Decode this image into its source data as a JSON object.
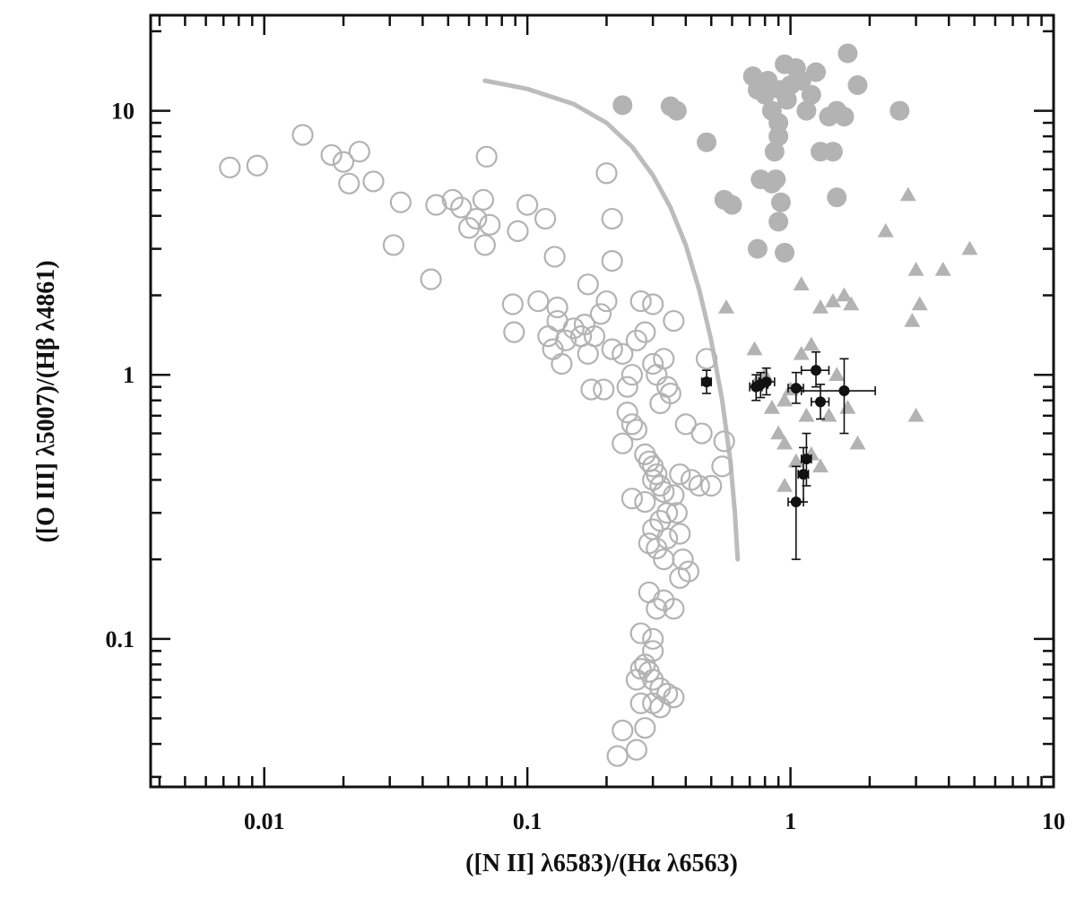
{
  "chart_data": {
    "type": "scatter",
    "title": "",
    "xlabel": "([N II] λ6583)/(Hα λ6563)",
    "ylabel": "([O III] λ5007)/(Hβ λ4861)",
    "xscale": "log",
    "yscale": "log",
    "xlim": [
      0.0037,
      10
    ],
    "ylim": [
      0.0275,
      23
    ],
    "x_tick_labels": [
      {
        "value": 0.01,
        "label": "0.01"
      },
      {
        "value": 0.1,
        "label": "0.1"
      },
      {
        "value": 1,
        "label": "1"
      },
      {
        "value": 10,
        "label": "10"
      }
    ],
    "y_tick_labels": [
      {
        "value": 0.1,
        "label": "0.1"
      },
      {
        "value": 1,
        "label": "1"
      },
      {
        "value": 10,
        "label": "10"
      }
    ],
    "grid": false,
    "legend": "none",
    "colors": {
      "gray": "#b3b3b3",
      "black": "#111111"
    },
    "curve": {
      "color": "#bcbcbc",
      "points": [
        [
          0.069,
          13.0
        ],
        [
          0.1,
          12.1
        ],
        [
          0.15,
          10.6
        ],
        [
          0.2,
          9.0
        ],
        [
          0.25,
          7.3
        ],
        [
          0.3,
          5.7
        ],
        [
          0.35,
          4.3
        ],
        [
          0.4,
          3.1
        ],
        [
          0.45,
          2.1
        ],
        [
          0.5,
          1.35
        ],
        [
          0.55,
          0.8
        ],
        [
          0.59,
          0.48
        ],
        [
          0.615,
          0.3
        ],
        [
          0.63,
          0.2
        ]
      ]
    },
    "series": [
      {
        "marker": "open-circle",
        "color": "#b3b3b3",
        "points": [
          [
            0.0074,
            6.1
          ],
          [
            0.0094,
            6.2
          ],
          [
            0.014,
            8.1
          ],
          [
            0.018,
            6.8
          ],
          [
            0.02,
            6.4
          ],
          [
            0.021,
            5.3
          ],
          [
            0.023,
            7.0
          ],
          [
            0.026,
            5.4
          ],
          [
            0.031,
            3.1
          ],
          [
            0.033,
            4.5
          ],
          [
            0.043,
            2.3
          ],
          [
            0.045,
            4.4
          ],
          [
            0.052,
            4.6
          ],
          [
            0.056,
            4.3
          ],
          [
            0.06,
            3.6
          ],
          [
            0.064,
            3.9
          ],
          [
            0.068,
            4.6
          ],
          [
            0.069,
            3.1
          ],
          [
            0.07,
            6.7
          ],
          [
            0.072,
            3.7
          ],
          [
            0.092,
            3.5
          ],
          [
            0.1,
            4.4
          ],
          [
            0.11,
            1.9
          ],
          [
            0.117,
            3.9
          ],
          [
            0.127,
            2.8
          ],
          [
            0.2,
            5.8
          ],
          [
            0.21,
            2.7
          ],
          [
            0.21,
            3.9
          ],
          [
            0.17,
            2.2
          ],
          [
            0.088,
            1.85
          ],
          [
            0.089,
            1.45
          ],
          [
            0.12,
            1.4
          ],
          [
            0.125,
            1.25
          ],
          [
            0.13,
            1.6
          ],
          [
            0.13,
            1.8
          ],
          [
            0.135,
            1.1
          ],
          [
            0.14,
            1.35
          ],
          [
            0.15,
            1.5
          ],
          [
            0.16,
            1.4
          ],
          [
            0.165,
            1.55
          ],
          [
            0.17,
            1.2
          ],
          [
            0.18,
            1.4
          ],
          [
            0.19,
            1.7
          ],
          [
            0.2,
            1.9
          ],
          [
            0.175,
            0.88
          ],
          [
            0.195,
            0.88
          ],
          [
            0.21,
            1.25
          ],
          [
            0.23,
            1.2
          ],
          [
            0.24,
            0.9
          ],
          [
            0.25,
            1.0
          ],
          [
            0.26,
            1.35
          ],
          [
            0.27,
            1.9
          ],
          [
            0.28,
            1.45
          ],
          [
            0.3,
            1.85
          ],
          [
            0.3,
            1.1
          ],
          [
            0.31,
            1.0
          ],
          [
            0.33,
            1.15
          ],
          [
            0.34,
            0.9
          ],
          [
            0.35,
            0.85
          ],
          [
            0.32,
            0.78
          ],
          [
            0.36,
            1.6
          ],
          [
            0.24,
            0.72
          ],
          [
            0.25,
            0.65
          ],
          [
            0.26,
            0.62
          ],
          [
            0.23,
            0.55
          ],
          [
            0.28,
            0.5
          ],
          [
            0.29,
            0.47
          ],
          [
            0.3,
            0.45
          ],
          [
            0.31,
            0.42
          ],
          [
            0.32,
            0.38
          ],
          [
            0.28,
            0.33
          ],
          [
            0.25,
            0.34
          ],
          [
            0.3,
            0.4
          ],
          [
            0.33,
            0.36
          ],
          [
            0.34,
            0.3
          ],
          [
            0.36,
            0.35
          ],
          [
            0.38,
            0.42
          ],
          [
            0.42,
            0.4
          ],
          [
            0.45,
            0.38
          ],
          [
            0.5,
            0.38
          ],
          [
            0.56,
            0.56
          ],
          [
            0.55,
            0.45
          ],
          [
            0.4,
            0.65
          ],
          [
            0.46,
            0.6
          ],
          [
            0.48,
            1.15
          ],
          [
            0.3,
            0.26
          ],
          [
            0.32,
            0.28
          ],
          [
            0.37,
            0.3
          ],
          [
            0.38,
            0.25
          ],
          [
            0.29,
            0.23
          ],
          [
            0.31,
            0.22
          ],
          [
            0.33,
            0.2
          ],
          [
            0.34,
            0.24
          ],
          [
            0.39,
            0.2
          ],
          [
            0.41,
            0.18
          ],
          [
            0.38,
            0.17
          ],
          [
            0.29,
            0.15
          ],
          [
            0.31,
            0.13
          ],
          [
            0.33,
            0.14
          ],
          [
            0.36,
            0.13
          ],
          [
            0.27,
            0.105
          ],
          [
            0.3,
            0.1
          ],
          [
            0.3,
            0.09
          ],
          [
            0.28,
            0.08
          ],
          [
            0.26,
            0.07
          ],
          [
            0.27,
            0.077
          ],
          [
            0.29,
            0.075
          ],
          [
            0.3,
            0.07
          ],
          [
            0.32,
            0.065
          ],
          [
            0.34,
            0.062
          ],
          [
            0.36,
            0.06
          ],
          [
            0.3,
            0.057
          ],
          [
            0.32,
            0.055
          ],
          [
            0.27,
            0.057
          ],
          [
            0.23,
            0.045
          ],
          [
            0.28,
            0.046
          ],
          [
            0.22,
            0.036
          ],
          [
            0.26,
            0.038
          ]
        ]
      },
      {
        "marker": "filled-circle",
        "color": "#b3b3b3",
        "points": [
          [
            0.23,
            10.5
          ],
          [
            0.35,
            10.4
          ],
          [
            0.37,
            10.0
          ],
          [
            0.48,
            7.6
          ],
          [
            0.56,
            4.6
          ],
          [
            0.6,
            4.4
          ],
          [
            0.72,
            13.5
          ],
          [
            0.75,
            12.0
          ],
          [
            0.77,
            5.5
          ],
          [
            0.8,
            11.5
          ],
          [
            0.82,
            13.0
          ],
          [
            0.85,
            10.0
          ],
          [
            0.87,
            7.0
          ],
          [
            0.88,
            5.5
          ],
          [
            0.9,
            9.0
          ],
          [
            0.92,
            12.0
          ],
          [
            0.95,
            15.0
          ],
          [
            0.97,
            11.0
          ],
          [
            1.0,
            12.5
          ],
          [
            1.05,
            14.5
          ],
          [
            1.1,
            13.0
          ],
          [
            1.15,
            10.0
          ],
          [
            1.2,
            11.5
          ],
          [
            1.25,
            14.0
          ],
          [
            1.3,
            7.0
          ],
          [
            1.4,
            9.5
          ],
          [
            1.45,
            7.0
          ],
          [
            1.5,
            10.0
          ],
          [
            1.6,
            9.5
          ],
          [
            1.65,
            16.5
          ],
          [
            1.8,
            12.5
          ],
          [
            2.6,
            10.0
          ],
          [
            0.85,
            5.3
          ],
          [
            0.9,
            3.8
          ],
          [
            0.92,
            4.5
          ],
          [
            0.95,
            2.9
          ],
          [
            0.75,
            3.0
          ],
          [
            1.5,
            4.7
          ],
          [
            0.9,
            8.0
          ]
        ]
      },
      {
        "marker": "triangle",
        "color": "#b3b3b3",
        "points": [
          [
            0.57,
            1.8
          ],
          [
            0.73,
            1.25
          ],
          [
            0.75,
            0.95
          ],
          [
            0.8,
            1.0
          ],
          [
            0.85,
            0.75
          ],
          [
            0.9,
            0.6
          ],
          [
            0.95,
            0.55
          ],
          [
            0.95,
            0.8
          ],
          [
            1.0,
            0.88
          ],
          [
            1.05,
            0.47
          ],
          [
            1.1,
            2.2
          ],
          [
            1.15,
            0.7
          ],
          [
            1.2,
            0.5
          ],
          [
            1.3,
            0.45
          ],
          [
            1.3,
            1.8
          ],
          [
            1.4,
            0.7
          ],
          [
            1.45,
            1.9
          ],
          [
            1.5,
            1.0
          ],
          [
            1.6,
            2.0
          ],
          [
            1.65,
            0.75
          ],
          [
            1.7,
            1.85
          ],
          [
            1.8,
            0.55
          ],
          [
            1.1,
            1.2
          ],
          [
            1.2,
            1.3
          ],
          [
            0.95,
            0.38
          ],
          [
            2.3,
            3.5
          ],
          [
            2.8,
            4.8
          ],
          [
            3.0,
            2.5
          ],
          [
            3.1,
            1.85
          ],
          [
            3.0,
            0.7
          ],
          [
            3.8,
            2.5
          ],
          [
            4.8,
            3.0
          ],
          [
            2.9,
            1.6
          ]
        ]
      },
      {
        "marker": "filled-circle-errorbars",
        "color": "#111111",
        "points": [
          {
            "x": 0.48,
            "y": 0.94,
            "xerr": [
              0.46,
              0.5
            ],
            "yerr": [
              0.85,
              1.04
            ]
          },
          {
            "x": 0.74,
            "y": 0.9,
            "xerr": [
              0.7,
              0.78
            ],
            "yerr": [
              0.8,
              1.0
            ]
          },
          {
            "x": 0.77,
            "y": 0.92,
            "xerr": [
              0.72,
              0.82
            ],
            "yerr": [
              0.82,
              1.02
            ]
          },
          {
            "x": 0.81,
            "y": 0.94,
            "xerr": [
              0.76,
              0.87
            ],
            "yerr": [
              0.84,
              1.06
            ]
          },
          {
            "x": 1.05,
            "y": 0.89,
            "xerr": [
              0.98,
              1.12
            ],
            "yerr": [
              0.78,
              1.02
            ]
          },
          {
            "x": 1.05,
            "y": 0.33,
            "xerr": [
              0.98,
              1.12
            ],
            "yerr": [
              0.2,
              0.45
            ]
          },
          {
            "x": 1.12,
            "y": 0.42,
            "xerr": [
              1.07,
              1.17
            ],
            "yerr": [
              0.33,
              0.53
            ]
          },
          {
            "x": 1.15,
            "y": 0.48,
            "xerr": [
              1.1,
              1.2
            ],
            "yerr": [
              0.38,
              0.6
            ]
          },
          {
            "x": 1.25,
            "y": 1.04,
            "xerr": [
              1.1,
              1.4
            ],
            "yerr": [
              0.9,
              1.22
            ]
          },
          {
            "x": 1.3,
            "y": 0.79,
            "xerr": [
              1.2,
              1.4
            ],
            "yerr": [
              0.68,
              0.92
            ]
          },
          {
            "x": 1.6,
            "y": 0.87,
            "xerr": [
              1.1,
              2.1
            ],
            "yerr": [
              0.6,
              1.15
            ]
          }
        ]
      }
    ]
  }
}
